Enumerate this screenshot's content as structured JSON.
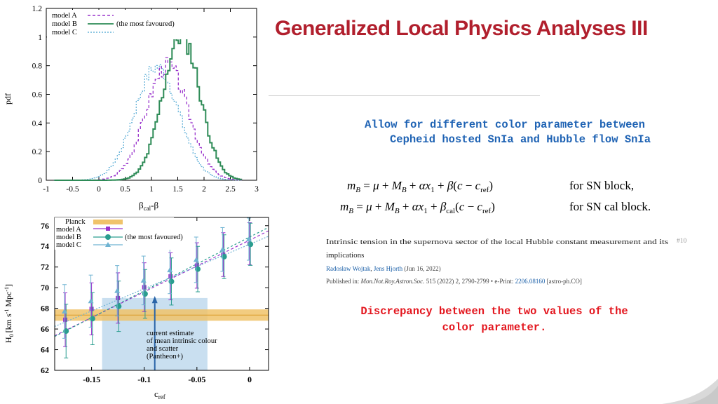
{
  "slide": {
    "title": "Generalized Local Physics Analyses III",
    "accent_color": "#b11f2d"
  },
  "top_plot": {
    "legend": [
      {
        "label": "model A",
        "color": "#9933cc",
        "style": "dashed"
      },
      {
        "label": "model B",
        "color": "#2e8b57",
        "style": "solid"
      },
      {
        "label": "model C",
        "color": "#66b3d9",
        "style": "dotted"
      }
    ],
    "annotation": "(the most favoured)",
    "y_axis_label": "pdf",
    "x_axis_label_main": "β",
    "x_axis_label_sub": "cal",
    "x_axis_label_tail": "-β",
    "x_ticks": [
      "-1",
      "-0.5",
      "0",
      "0.5",
      "1",
      "1.5",
      "2",
      "2.5",
      "3"
    ],
    "y_ticks": [
      "0",
      "0.2",
      "0.4",
      "0.6",
      "0.8",
      "1",
      "1.2"
    ]
  },
  "bottom_plot": {
    "legend": [
      {
        "label": "Planck",
        "color": "#f0c36a"
      },
      {
        "label": "model A",
        "color": "#9933cc"
      },
      {
        "label": "model B",
        "color": "#2a9d8f"
      },
      {
        "label": "model C",
        "color": "#6fb3d2"
      }
    ],
    "annotation": "(the most favoured)",
    "note_lines": [
      "current estimate",
      "of mean intrinsic colour",
      "and scatter",
      "(Pantheon+)"
    ],
    "y_axis_label": "H",
    "y_axis_label_sub": "0",
    "y_axis_units": "[km s",
    "y_axis_units_sup1": "-1",
    "y_axis_units_mid": " Mpc",
    "y_axis_units_sup2": "-1",
    "y_axis_units_end": "]",
    "x_axis_label_main": "c",
    "x_axis_label_sub": "ref",
    "x_ticks": [
      "-0.15",
      "-0.1",
      "-0.05",
      "0"
    ],
    "y_ticks": [
      "62",
      "64",
      "66",
      "68",
      "70",
      "72",
      "74",
      "76"
    ]
  },
  "text": {
    "allow_line1": "Allow for different color parameter between",
    "allow_line2": "Cepheid hosted SnIa and Hubble flow SnIa",
    "eq1_label": "for SN block,",
    "eq2_label": "for SN cal block.",
    "disc_line1": "Discrepancy between the two values of the",
    "disc_line2": "color parameter."
  },
  "paper": {
    "title_line1": "Intrinsic tension in the supernova sector of the local Hubble constant measurement and its",
    "title_line2": "implications",
    "record_number": "#10",
    "author1": "Radosław Wojtak",
    "author2": "Jens Hjorth",
    "date": "(Jun 16, 2022)",
    "published_prefix": "Published in: ",
    "journal": "Mon.Not.Roy.Astron.Soc.",
    "journal_details": " 515 (2022) 2, 2790-2799 • e-Print: ",
    "eprint": "2206.08160",
    "category": " [astro-ph.CO]"
  }
}
